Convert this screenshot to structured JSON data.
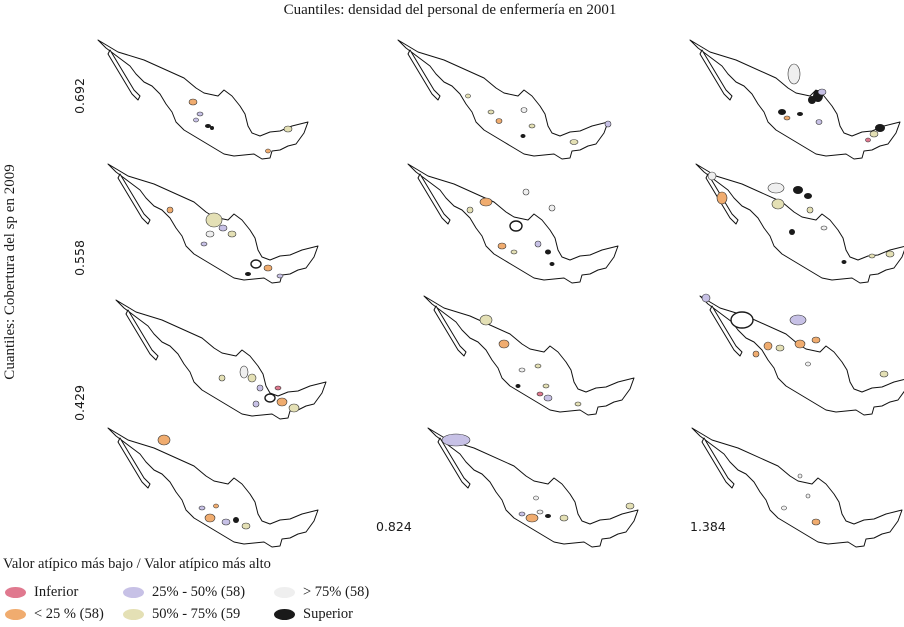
{
  "chart_data": {
    "type": "map",
    "title": "Cuantiles: densidad del personal de enfermería en 2001",
    "ylabel": "Cuantiles: Cobertura del sp en 2009",
    "grid": {
      "rows": 4,
      "cols": 3
    },
    "x_breaks": [
      "0.824",
      "1.384"
    ],
    "y_breaks": [
      "0.692",
      "0.558",
      "0.429"
    ],
    "legend_title": "Valor atípico más bajo / Valor atípico más alto",
    "legend": [
      {
        "label": "Inferior",
        "color": "#e0798f"
      },
      {
        "label": "25% - 50% (58)",
        "color": "#c7c1e6"
      },
      {
        "label": "> 75% (58)",
        "color": "#efefef"
      },
      {
        "label": "< 25 % (58)",
        "color": "#f0ac6f"
      },
      {
        "label": "50% - 75% (59",
        "color": "#e4e0b5"
      },
      {
        "label": "Superior",
        "color": "#1a1a1a"
      }
    ]
  }
}
